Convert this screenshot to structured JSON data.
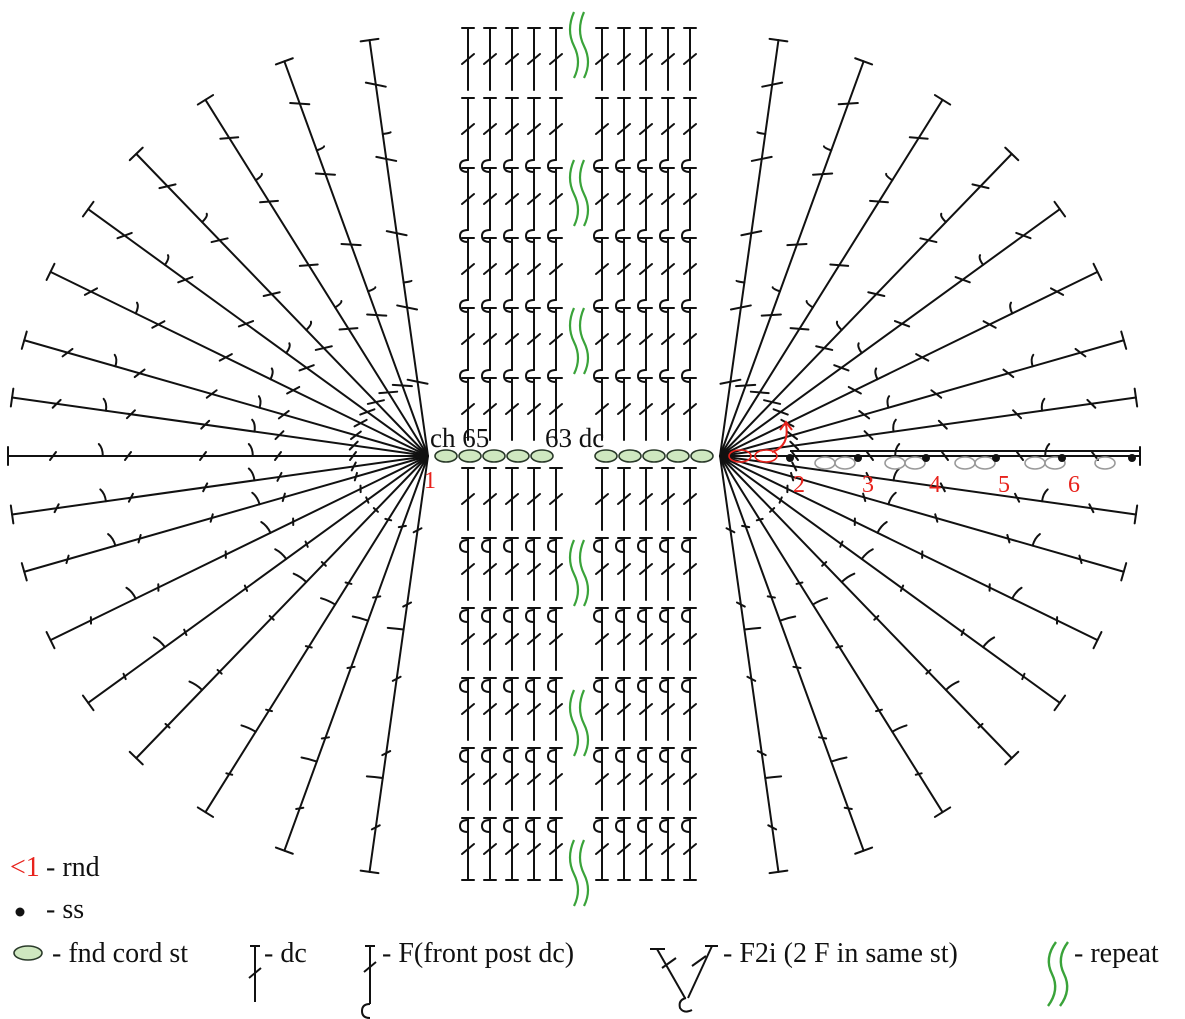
{
  "labels": {
    "foundation_left": "ch 65",
    "foundation_right": "63 dc"
  },
  "round_markers": [
    "1",
    "2",
    "3",
    "4",
    "5",
    "6"
  ],
  "legend": {
    "rnd_mark": "<1",
    "rnd_text": "- rnd",
    "ss_text": "- ss",
    "cord_text": "- fnd cord st",
    "dc_text": "- dc",
    "fpdc_text": "- F(front post dc)",
    "f2i_text": "- F2i (2 F in same st)",
    "repeat_text": "- repeat"
  },
  "colors": {
    "ink": "#111111",
    "round_marker": "#e8221c",
    "cord_fill": "#cfe8c0",
    "cord_outline": "#2a3a2a",
    "repeat": "#3aa33a",
    "grey_cord": "#9a9a9a"
  },
  "icons": {
    "ss": "filled-dot",
    "cord": "green-oval",
    "dc": "t-bar-with-slash",
    "fpdc": "t-bar-with-hook",
    "f2i": "v-pair-of-hooked-bars",
    "repeat": "double-wave"
  }
}
